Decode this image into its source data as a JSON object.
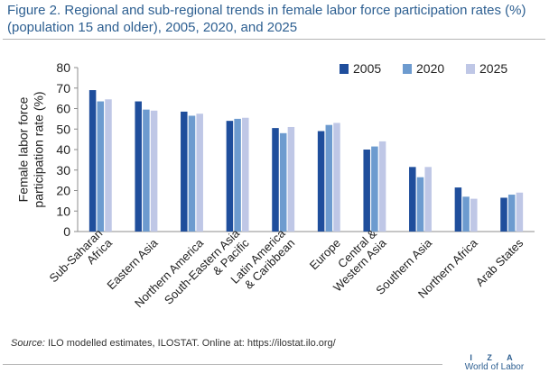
{
  "title": {
    "line1": "Figure 2. Regional and sub-regional trends in female labor force participation rates (%)",
    "line2": "(population 15 and older), 2005, 2020, and 2025"
  },
  "source": {
    "label": "Source:",
    "text": " ILO modelled estimates, ILOSTAT. Online at: https://ilostat.ilo.org/"
  },
  "logo": {
    "iza": "I Z A",
    "wol": "World of Labor"
  },
  "chart_data": {
    "type": "bar",
    "ylabel_lines": [
      "Female labor force",
      "participation rate (%)"
    ],
    "ylim": [
      0,
      80
    ],
    "yticks": [
      0,
      10,
      20,
      30,
      40,
      50,
      60,
      70,
      80
    ],
    "grid": false,
    "legend_position": "top-right",
    "categories": [
      [
        "Sub-Saharan",
        "Africa"
      ],
      [
        "Eastern Asia"
      ],
      [
        "Northern America"
      ],
      [
        "South-Eastern Asia",
        "& Pacific"
      ],
      [
        "Latin America",
        "& Caribbean"
      ],
      [
        "Europe"
      ],
      [
        "Central &",
        "Western Asia"
      ],
      [
        "Southern Asia"
      ],
      [
        "Northern Africa"
      ],
      [
        "Arab States"
      ]
    ],
    "series": [
      {
        "name": "2005",
        "color": "#1f4e9c",
        "values": [
          69,
          63.5,
          58.5,
          54,
          50.5,
          49,
          40,
          31.5,
          21.5,
          16.5
        ]
      },
      {
        "name": "2020",
        "color": "#6d9bcf",
        "values": [
          63.5,
          59.5,
          56.5,
          55,
          48,
          52,
          41.5,
          26.5,
          17,
          18
        ]
      },
      {
        "name": "2025",
        "color": "#bfc7e6",
        "values": [
          64.5,
          59,
          57.5,
          55.5,
          51,
          53,
          44,
          31.5,
          16,
          19
        ]
      }
    ]
  }
}
